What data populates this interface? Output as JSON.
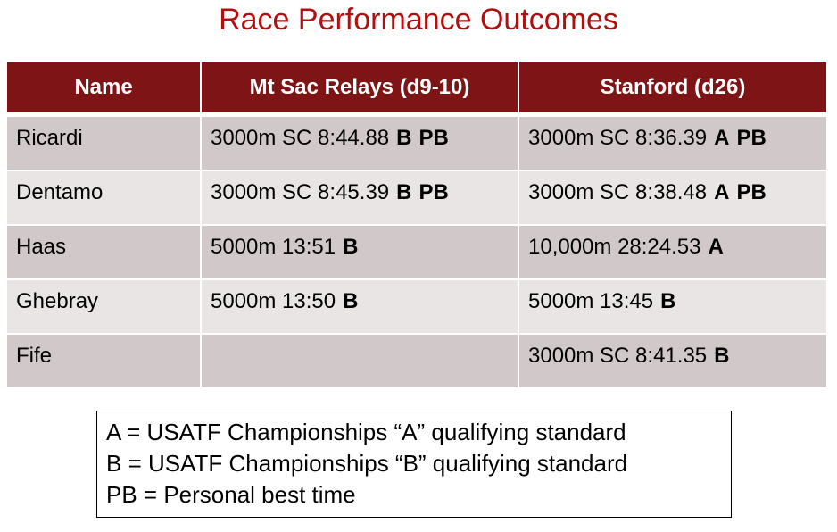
{
  "title": "Race Performance Outcomes",
  "table": {
    "headers": [
      "Name",
      "Mt Sac Relays (d9-10)",
      "Stanford (d26)"
    ],
    "rows": [
      [
        {
          "text": "Ricardi"
        },
        {
          "text": "3000m SC 8:44.88",
          "marks": [
            "B",
            "PB"
          ]
        },
        {
          "text": "3000m SC 8:36.39",
          "marks": [
            "A",
            "PB"
          ]
        }
      ],
      [
        {
          "text": "Dentamo"
        },
        {
          "text": "3000m SC 8:45.39",
          "marks": [
            "B",
            "PB"
          ]
        },
        {
          "text": "3000m SC 8:38.48",
          "marks": [
            "A",
            "PB"
          ]
        }
      ],
      [
        {
          "text": "Haas"
        },
        {
          "text": "5000m 13:51",
          "marks": [
            "B"
          ]
        },
        {
          "text": "10,000m 28:24.53",
          "marks": [
            "A"
          ]
        }
      ],
      [
        {
          "text": "Ghebray"
        },
        {
          "text": "5000m 13:50",
          "marks": [
            "B"
          ]
        },
        {
          "text": "5000m 13:45",
          "marks": [
            "B"
          ]
        }
      ],
      [
        {
          "text": "Fife"
        },
        null,
        {
          "text": "3000m SC 8:41.35",
          "marks": [
            "B"
          ]
        }
      ]
    ]
  },
  "legend": [
    "A = USATF Championships “A” qualifying standard",
    "B = USATF Championships “B” qualifying standard",
    "PB = Personal best time"
  ]
}
